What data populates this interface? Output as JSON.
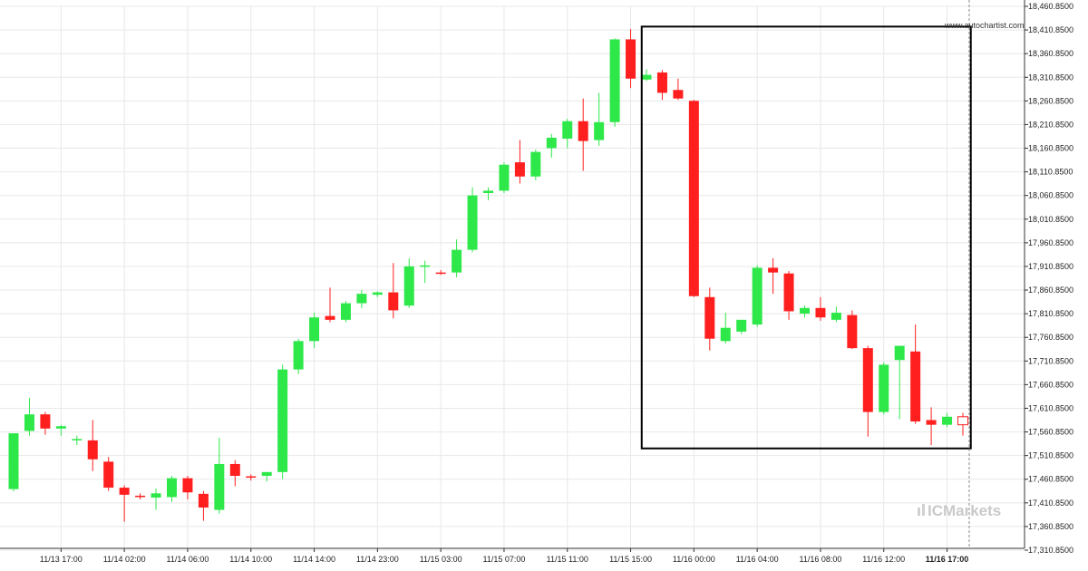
{
  "watermark": "www.autochartist.com",
  "brand": {
    "name": "ICMarkets",
    "color": "#c8c8c8"
  },
  "colors": {
    "up": "#2ee84a",
    "down": "#ff1f1f",
    "last_candle": "#ff1f1f",
    "pattern_box": "#000000",
    "grid": "#e8e8e8",
    "vline": "#8a8a8a"
  },
  "chart_data": {
    "type": "candlestick",
    "title": "",
    "xlabel": "",
    "ylabel": "",
    "ylim": [
      17310.85,
      18460.85
    ],
    "yticks": [
      "18,460.8500",
      "18,410.8500",
      "18,360.8500",
      "18,310.8500",
      "18,260.8500",
      "18,210.8500",
      "18,160.8500",
      "18,110.8500",
      "18,060.8500",
      "18,010.8500",
      "17,960.8500",
      "17,910.8500",
      "17,860.8500",
      "17,810.8500",
      "17,760.8500",
      "17,710.8500",
      "17,660.8500",
      "17,610.8500",
      "17,560.8500",
      "17,510.8500",
      "17,460.8500",
      "17,410.8500",
      "17,360.8500",
      "17,310.8500"
    ],
    "xticks": [
      {
        "label": "11/13 17:00",
        "index": 3,
        "bold": false
      },
      {
        "label": "11/14 02:00",
        "index": 7,
        "bold": false
      },
      {
        "label": "11/14 06:00",
        "index": 11,
        "bold": false
      },
      {
        "label": "11/14 10:00",
        "index": 15,
        "bold": false
      },
      {
        "label": "11/14 14:00",
        "index": 19,
        "bold": false
      },
      {
        "label": "11/14 23:00",
        "index": 23,
        "bold": false
      },
      {
        "label": "11/15 03:00",
        "index": 27,
        "bold": false
      },
      {
        "label": "11/15 07:00",
        "index": 31,
        "bold": false
      },
      {
        "label": "11/15 11:00",
        "index": 35,
        "bold": false
      },
      {
        "label": "11/15 15:00",
        "index": 39,
        "bold": false
      },
      {
        "label": "11/16 00:00",
        "index": 43,
        "bold": false
      },
      {
        "label": "11/16 04:00",
        "index": 47,
        "bold": false
      },
      {
        "label": "11/16 08:00",
        "index": 51,
        "bold": false
      },
      {
        "label": "11/16 12:00",
        "index": 55,
        "bold": false
      },
      {
        "label": "11/16 17:00",
        "index": 59,
        "bold": true
      }
    ],
    "candles": [
      {
        "o": 17440,
        "h": 17558,
        "l": 17435,
        "c": 17558
      },
      {
        "o": 17563,
        "h": 17633,
        "l": 17553,
        "c": 17598
      },
      {
        "o": 17598,
        "h": 17603,
        "l": 17555,
        "c": 17568
      },
      {
        "o": 17568,
        "h": 17576,
        "l": 17553,
        "c": 17573
      },
      {
        "o": 17543,
        "h": 17553,
        "l": 17533,
        "c": 17546
      },
      {
        "o": 17543,
        "h": 17586,
        "l": 17478,
        "c": 17503
      },
      {
        "o": 17498,
        "h": 17508,
        "l": 17436,
        "c": 17443
      },
      {
        "o": 17443,
        "h": 17448,
        "l": 17371,
        "c": 17428
      },
      {
        "o": 17426,
        "h": 17431,
        "l": 17418,
        "c": 17424
      },
      {
        "o": 17422,
        "h": 17441,
        "l": 17396,
        "c": 17431
      },
      {
        "o": 17423,
        "h": 17468,
        "l": 17413,
        "c": 17463
      },
      {
        "o": 17463,
        "h": 17468,
        "l": 17418,
        "c": 17433
      },
      {
        "o": 17430,
        "h": 17436,
        "l": 17373,
        "c": 17401
      },
      {
        "o": 17396,
        "h": 17548,
        "l": 17388,
        "c": 17493
      },
      {
        "o": 17493,
        "h": 17501,
        "l": 17446,
        "c": 17468
      },
      {
        "o": 17467,
        "h": 17471,
        "l": 17458,
        "c": 17465
      },
      {
        "o": 17468,
        "h": 17476,
        "l": 17456,
        "c": 17476
      },
      {
        "o": 17476,
        "h": 17703,
        "l": 17461,
        "c": 17693
      },
      {
        "o": 17693,
        "h": 17758,
        "l": 17683,
        "c": 17753
      },
      {
        "o": 17753,
        "h": 17813,
        "l": 17738,
        "c": 17803
      },
      {
        "o": 17806,
        "h": 17866,
        "l": 17793,
        "c": 17798
      },
      {
        "o": 17798,
        "h": 17838,
        "l": 17793,
        "c": 17833
      },
      {
        "o": 17833,
        "h": 17861,
        "l": 17823,
        "c": 17853
      },
      {
        "o": 17851,
        "h": 17858,
        "l": 17846,
        "c": 17856
      },
      {
        "o": 17856,
        "h": 17918,
        "l": 17801,
        "c": 17818
      },
      {
        "o": 17828,
        "h": 17928,
        "l": 17823,
        "c": 17911
      },
      {
        "o": 17911,
        "h": 17923,
        "l": 17876,
        "c": 17913
      },
      {
        "o": 17898,
        "h": 17903,
        "l": 17893,
        "c": 17896
      },
      {
        "o": 17898,
        "h": 17968,
        "l": 17888,
        "c": 17946
      },
      {
        "o": 17946,
        "h": 18078,
        "l": 17941,
        "c": 18061
      },
      {
        "o": 18066,
        "h": 18078,
        "l": 18051,
        "c": 18071
      },
      {
        "o": 18071,
        "h": 18131,
        "l": 18066,
        "c": 18126
      },
      {
        "o": 18131,
        "h": 18178,
        "l": 18086,
        "c": 18101
      },
      {
        "o": 18101,
        "h": 18158,
        "l": 18093,
        "c": 18153
      },
      {
        "o": 18161,
        "h": 18191,
        "l": 18141,
        "c": 18183
      },
      {
        "o": 18181,
        "h": 18223,
        "l": 18161,
        "c": 18218
      },
      {
        "o": 18218,
        "h": 18266,
        "l": 18113,
        "c": 18176
      },
      {
        "o": 18178,
        "h": 18278,
        "l": 18166,
        "c": 18216
      },
      {
        "o": 18216,
        "h": 18393,
        "l": 18206,
        "c": 18391
      },
      {
        "o": 18391,
        "h": 18413,
        "l": 18288,
        "c": 18308
      },
      {
        "o": 18306,
        "h": 18328,
        "l": 18303,
        "c": 18316
      },
      {
        "o": 18321,
        "h": 18326,
        "l": 18263,
        "c": 18278
      },
      {
        "o": 18284,
        "h": 18308,
        "l": 18263,
        "c": 18266
      },
      {
        "o": 18261,
        "h": 18263,
        "l": 17846,
        "c": 17848
      },
      {
        "o": 17846,
        "h": 17866,
        "l": 17733,
        "c": 17758
      },
      {
        "o": 17753,
        "h": 17813,
        "l": 17748,
        "c": 17781
      },
      {
        "o": 17773,
        "h": 17798,
        "l": 17768,
        "c": 17798
      },
      {
        "o": 17788,
        "h": 17913,
        "l": 17783,
        "c": 17908
      },
      {
        "o": 17908,
        "h": 17928,
        "l": 17853,
        "c": 17898
      },
      {
        "o": 17896,
        "h": 17901,
        "l": 17798,
        "c": 17816
      },
      {
        "o": 17811,
        "h": 17828,
        "l": 17803,
        "c": 17823
      },
      {
        "o": 17823,
        "h": 17846,
        "l": 17796,
        "c": 17803
      },
      {
        "o": 17798,
        "h": 17826,
        "l": 17793,
        "c": 17813
      },
      {
        "o": 17808,
        "h": 17818,
        "l": 17736,
        "c": 17738
      },
      {
        "o": 17738,
        "h": 17743,
        "l": 17551,
        "c": 17603
      },
      {
        "o": 17603,
        "h": 17708,
        "l": 17598,
        "c": 17703
      },
      {
        "o": 17713,
        "h": 17743,
        "l": 17588,
        "c": 17743
      },
      {
        "o": 17731,
        "h": 17788,
        "l": 17578,
        "c": 17583
      },
      {
        "o": 17586,
        "h": 17613,
        "l": 17533,
        "c": 17576
      },
      {
        "o": 17576,
        "h": 17601,
        "l": 17571,
        "c": 17593
      },
      {
        "o": 17593,
        "h": 17601,
        "l": 17553,
        "c": 17576
      }
    ],
    "pattern_box": {
      "start_index": 39.7,
      "end_index": 60.5,
      "top": 18418,
      "bottom": 17526
    },
    "current_time_index": 60.4
  }
}
